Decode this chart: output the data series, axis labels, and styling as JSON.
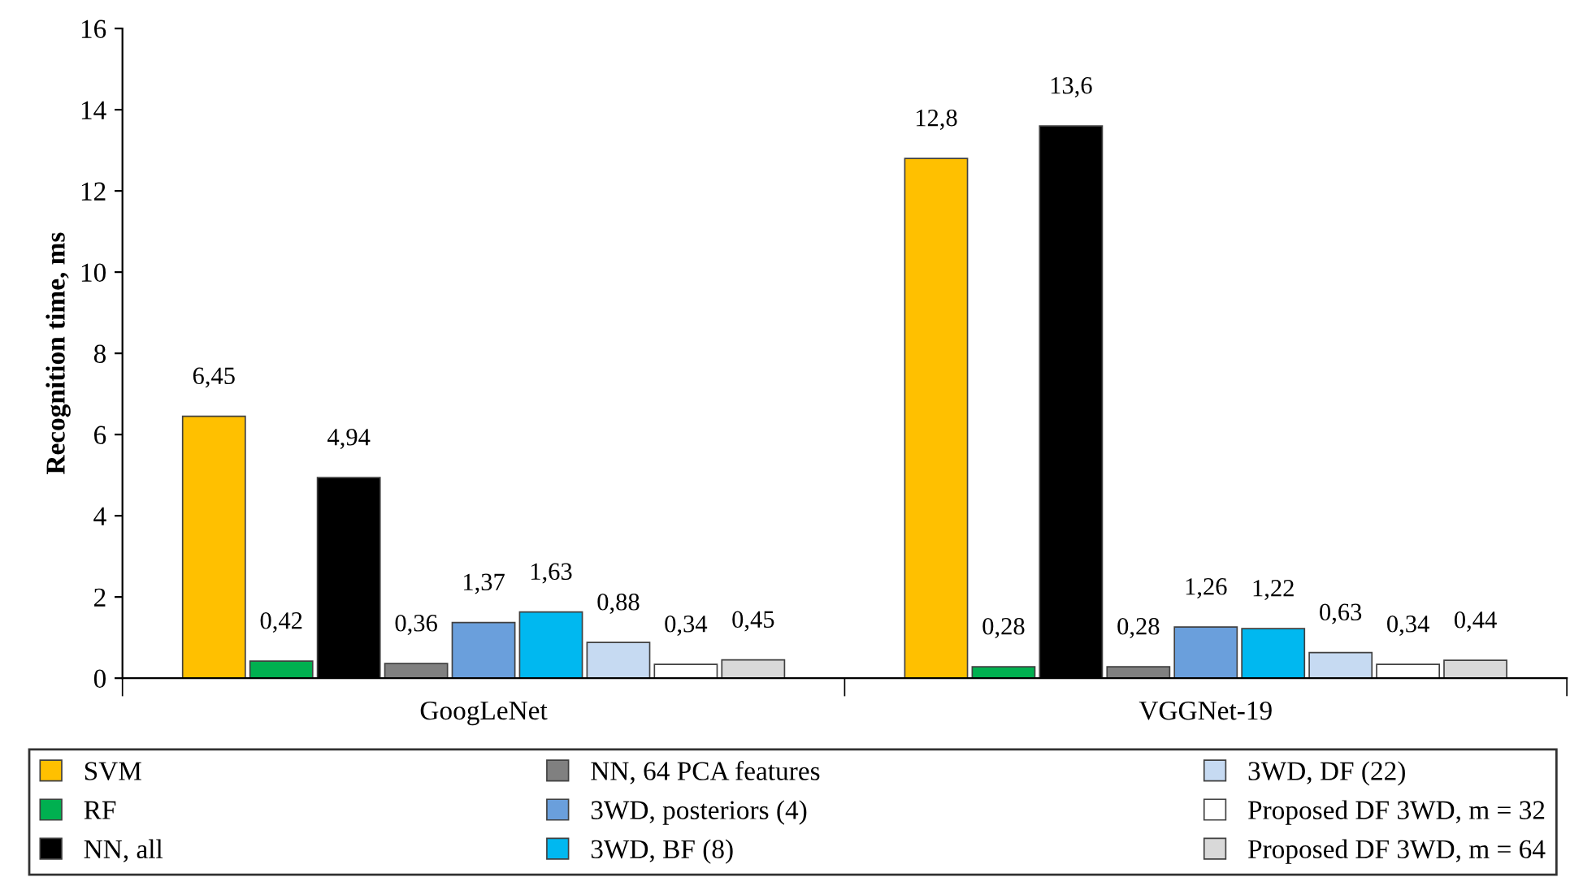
{
  "chart_data": {
    "type": "bar",
    "ylabel": "Recognition time, ms",
    "categories": [
      "GoogLeNet",
      "VGGNet-19"
    ],
    "ylim": [
      0,
      16
    ],
    "yticks": [
      0,
      2,
      4,
      6,
      8,
      10,
      12,
      14,
      16
    ],
    "grid": false,
    "legend": "bottom",
    "series": [
      {
        "name": "SVM",
        "color": "#ffc000",
        "values": [
          6.45,
          12.8
        ],
        "value_labels": [
          "6,45",
          "12,8"
        ]
      },
      {
        "name": "RF",
        "color": "#00b050",
        "values": [
          0.42,
          0.28
        ],
        "value_labels": [
          "0,42",
          "0,28"
        ]
      },
      {
        "name": "NN, all",
        "color": "#000000",
        "values": [
          4.94,
          13.6
        ],
        "value_labels": [
          "4,94",
          "13,6"
        ]
      },
      {
        "name": "NN, 64 PCA features",
        "color": "#808080",
        "values": [
          0.36,
          0.28
        ],
        "value_labels": [
          "0,36",
          "0,28"
        ]
      },
      {
        "name": "3WD, posteriors (4)",
        "color": "#6a9fdc",
        "values": [
          1.37,
          1.26
        ],
        "value_labels": [
          "1,37",
          "1,26"
        ]
      },
      {
        "name": "3WD, BF (8)",
        "color": "#00b8f0",
        "values": [
          1.63,
          1.22
        ],
        "value_labels": [
          "1,63",
          "1,22"
        ]
      },
      {
        "name": "3WD, DF (22)",
        "color": "#c6daf2",
        "values": [
          0.88,
          0.63
        ],
        "value_labels": [
          "0,88",
          "0,63"
        ]
      },
      {
        "name": "Proposed DF 3WD, m = 32",
        "color": "#ffffff",
        "values": [
          0.34,
          0.34
        ],
        "value_labels": [
          "0,34",
          "0,34"
        ]
      },
      {
        "name": "Proposed DF 3WD, m = 64",
        "color": "#d9d9d9",
        "values": [
          0.45,
          0.44
        ],
        "value_labels": [
          "0,45",
          "0,44"
        ]
      }
    ]
  }
}
